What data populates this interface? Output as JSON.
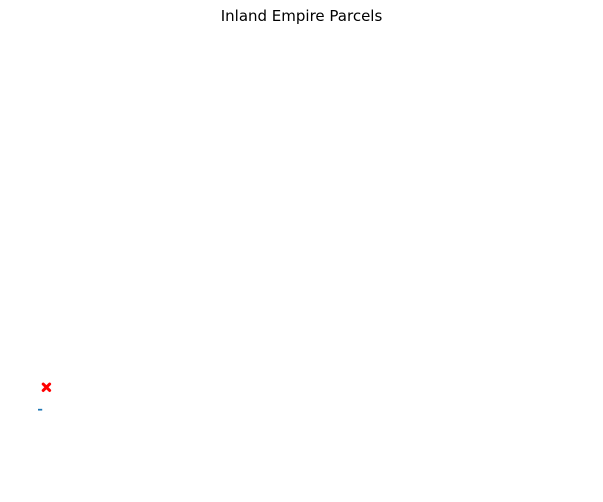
{
  "map": {
    "title": "Inland Empire Parcels",
    "x_range": [
      0,
      100
    ],
    "y_range": [
      0,
      100
    ],
    "axes_visible": false,
    "grid": false,
    "parcels": [
      {
        "color": "#1f77b4",
        "x": [
          0.0,
          0.8
        ],
        "y": [
          12.4,
          12.8
        ]
      }
    ],
    "markers": [
      {
        "symbol": "x-marker-icon",
        "color": "#ff0000",
        "x": 1.6,
        "y": 17.8
      }
    ]
  }
}
